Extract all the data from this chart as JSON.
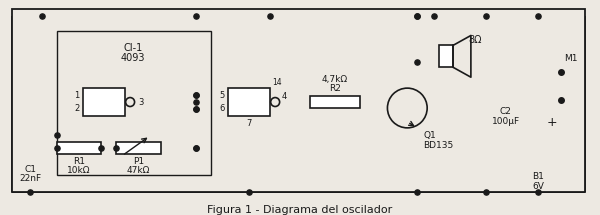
{
  "title": "Figura 1 - Diagrama del oscilador",
  "bg_color": "#ede9e2",
  "line_color": "#1a1a1a",
  "fig_width": 6.0,
  "fig_height": 2.15,
  "dpi": 100,
  "ci1_label": [
    "CI-1",
    "4093"
  ],
  "gate1_pins": [
    "1",
    "2",
    "3"
  ],
  "gate2_pins": [
    "5",
    "6",
    "4",
    "7",
    "14"
  ],
  "r1_label": [
    "R1",
    "10kΩ"
  ],
  "p1_label": [
    "P1",
    "47kΩ"
  ],
  "r2_label": [
    "R2",
    "4,7kΩ"
  ],
  "q1_label": [
    "Q1",
    "BD135"
  ],
  "spk_label": "8Ω",
  "c2_label": [
    "C2",
    "100μF"
  ],
  "b1_label": [
    "B1",
    "6V"
  ],
  "m1_label": "M1"
}
